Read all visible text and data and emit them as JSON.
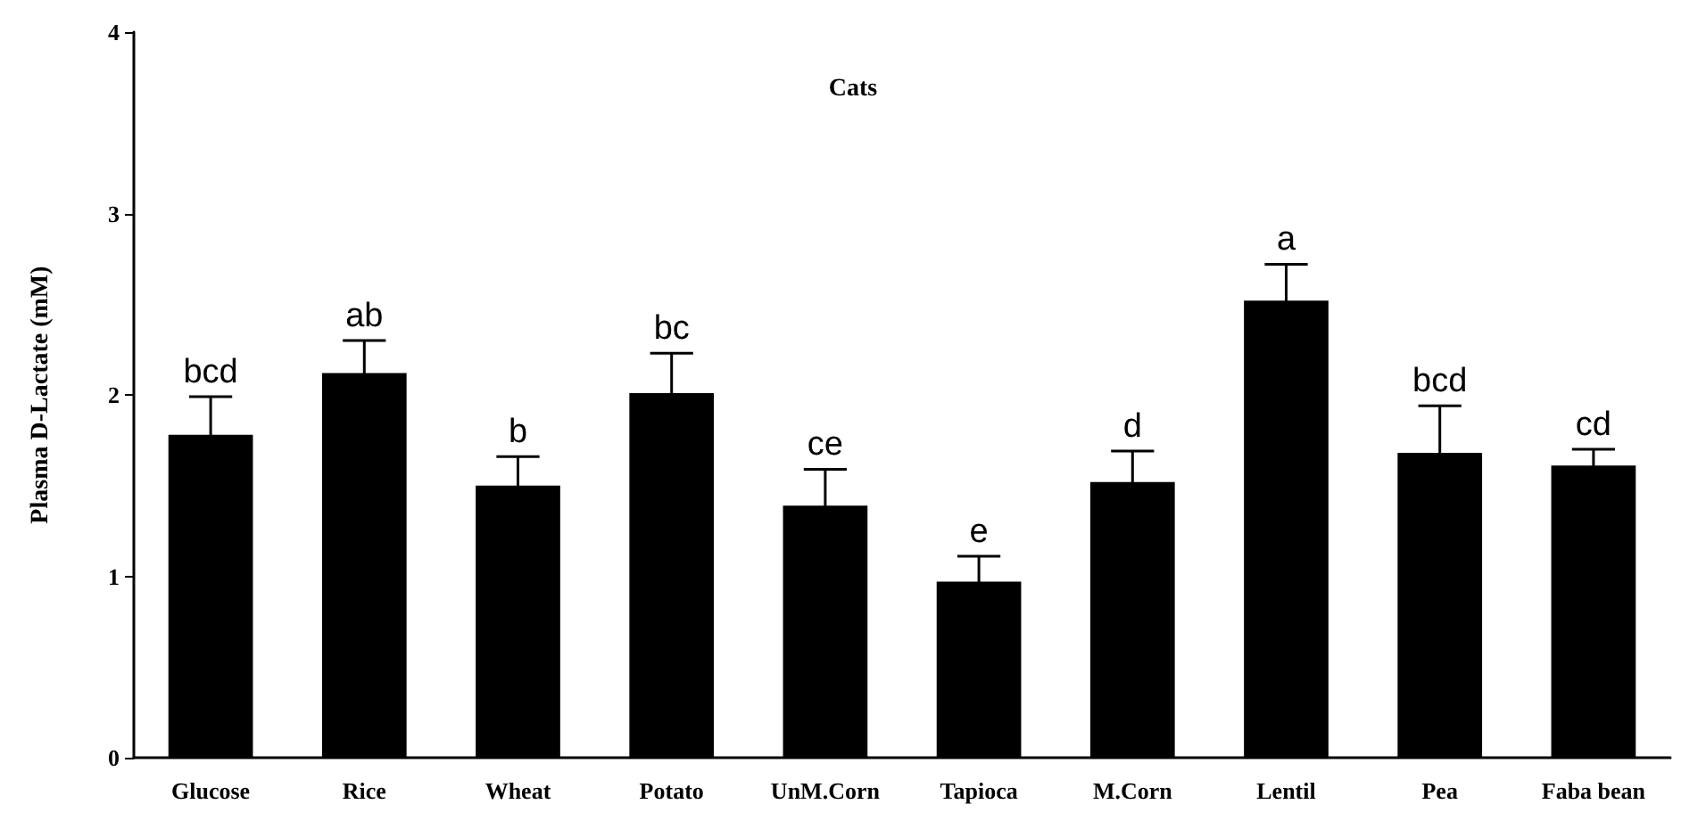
{
  "chart_data": {
    "type": "bar",
    "title": "Cats",
    "ylabel": "Plasma D-Lactate (mM)",
    "categories": [
      "Glucose",
      "Rice",
      "Wheat",
      "Potato",
      "UnM.Corn",
      "Tapioca",
      "M.Corn",
      "Lentil",
      "Pea",
      "Faba bean"
    ],
    "values": [
      1.78,
      2.12,
      1.5,
      2.01,
      1.39,
      0.97,
      1.52,
      2.52,
      1.68,
      1.61
    ],
    "errors": [
      0.21,
      0.18,
      0.16,
      0.22,
      0.2,
      0.14,
      0.17,
      0.2,
      0.26,
      0.09
    ],
    "color": "#000000",
    "ylim": [
      0,
      4
    ],
    "yticks": [
      0,
      1,
      2,
      3,
      4
    ],
    "grid": false,
    "annotations": [
      {
        "text": "bcd",
        "x": "Glucose",
        "y": 1.99
      },
      {
        "text": "ab",
        "x": "Rice",
        "y": 2.3
      },
      {
        "text": "b",
        "x": "Wheat",
        "y": 1.66
      },
      {
        "text": "bc",
        "x": "Potato",
        "y": 2.23
      },
      {
        "text": "ce",
        "x": "UnM.Corn",
        "y": 1.59
      },
      {
        "text": "e",
        "x": "Tapioca",
        "y": 1.11
      },
      {
        "text": "d",
        "x": "M.Corn",
        "y": 1.69
      },
      {
        "text": "a",
        "x": "Lentil",
        "y": 2.72
      },
      {
        "text": "bcd",
        "x": "Pea",
        "y": 1.94
      },
      {
        "text": "cd",
        "x": "Faba bean",
        "y": 1.7
      }
    ]
  }
}
